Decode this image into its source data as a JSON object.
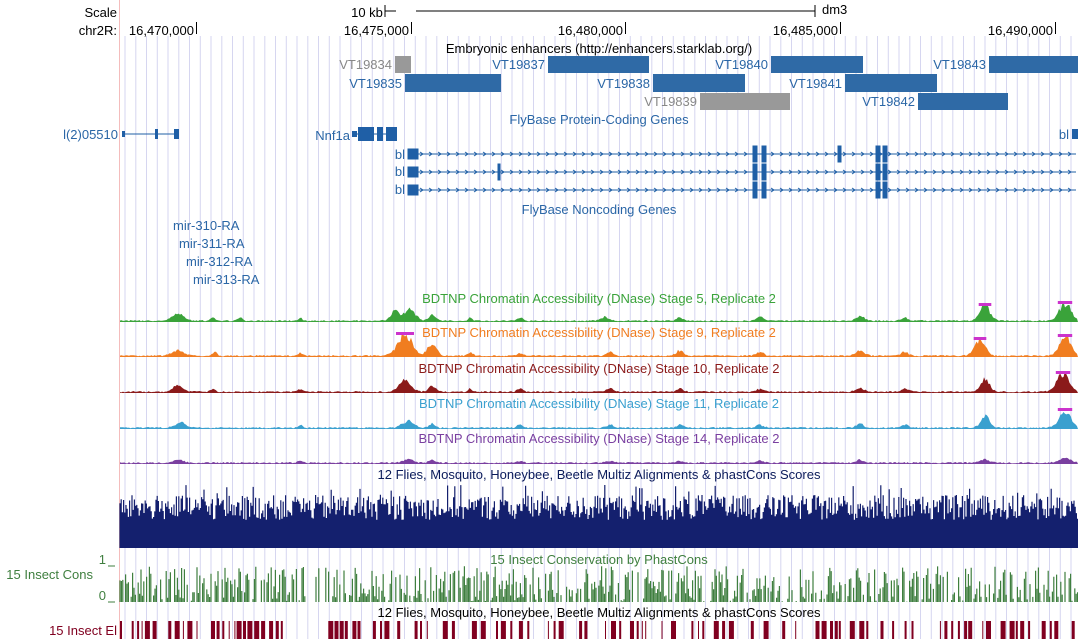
{
  "ruler": {
    "scale_label": "Scale",
    "scale_bar_label": "10 kb",
    "assembly": "dm3",
    "chrom_label": "chr2R:",
    "positions": [
      "16,470,000",
      "16,475,000",
      "16,480,000",
      "16,485,000",
      "16,490,000"
    ]
  },
  "enhancers": {
    "title": "Embryonic enhancers (http://enhancers.starklab.org/)",
    "items": [
      {
        "label": "VT19834",
        "color": "#999999"
      },
      {
        "label": "VT19835",
        "color": "#2f6aa6"
      },
      {
        "label": "VT19837",
        "color": "#2f6aa6"
      },
      {
        "label": "VT19838",
        "color": "#2f6aa6"
      },
      {
        "label": "VT19839",
        "color": "#999999"
      },
      {
        "label": "VT19840",
        "color": "#2f6aa6"
      },
      {
        "label": "VT19841",
        "color": "#2f6aa6"
      },
      {
        "label": "VT19842",
        "color": "#2f6aa6"
      },
      {
        "label": "VT19843",
        "color": "#2f6aa6"
      }
    ]
  },
  "protein_genes": {
    "title": "FlyBase Protein-Coding Genes",
    "genes": [
      "l(2)05510",
      "Nnf1a",
      "bl",
      "bl",
      "bl",
      "bl"
    ]
  },
  "noncoding_genes": {
    "title": "FlyBase Noncoding Genes",
    "genes": [
      "mir-310-RA",
      "mir-311-RA",
      "mir-312-RA",
      "mir-313-RA"
    ]
  },
  "dnase": {
    "tracks": [
      {
        "title": "BDTNP Chromatin Accessibility (DNase) Stage 5, Replicate 2",
        "color": "#3aa33a"
      },
      {
        "title": "BDTNP Chromatin Accessibility (DNase) Stage 9, Replicate 2",
        "color": "#f07d20"
      },
      {
        "title": "BDTNP Chromatin Accessibility (DNase) Stage 10, Replicate 2",
        "color": "#8b1a1a"
      },
      {
        "title": "BDTNP Chromatin Accessibility (DNase) Stage 11, Replicate 2",
        "color": "#3aa0cf"
      },
      {
        "title": "BDTNP Chromatin Accessibility (DNase) Stage 14, Replicate 2",
        "color": "#7a3fa0"
      }
    ],
    "clip_color": "#cc33cc"
  },
  "multiz": {
    "title": "12 Flies, Mosquito, Honeybee, Beetle Multiz Alignments & phastCons Scores",
    "color": "#14206e"
  },
  "phastcons": {
    "title": "15 Insect Conservation by PhastCons",
    "side_label": "15 Insect Cons",
    "axis_max": "1",
    "axis_min": "0",
    "color": "#3f7f3f"
  },
  "elements": {
    "title": "12 Flies, Mosquito, Honeybee, Beetle Multiz Alignments & phastCons Scores",
    "side_label": "15 Insect El",
    "color": "#800020"
  },
  "colors": {
    "gene_blue": "#1f5fa6",
    "gridline": "#d6d6f0",
    "side_rule": "#f4bcbc"
  }
}
